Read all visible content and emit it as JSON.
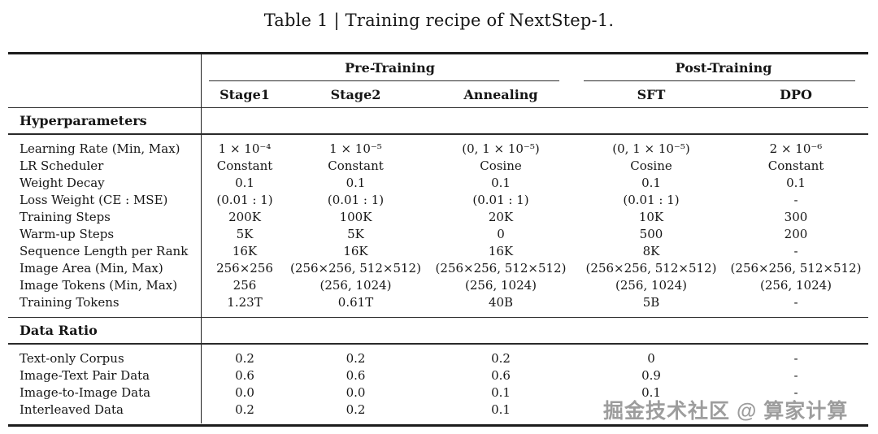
{
  "caption": "Table 1 | Training recipe of NextStep-1.",
  "table": {
    "col_groups": [
      {
        "label": "Pre-Training"
      },
      {
        "label": "Post-Training"
      }
    ],
    "columns": [
      "Stage1",
      "Stage2",
      "Annealing",
      "SFT",
      "DPO"
    ],
    "sections": [
      {
        "title": "Hyperparameters",
        "rows": [
          {
            "label": "Learning Rate (Min, Max)",
            "values": [
              "1 × 10⁻⁴",
              "1 × 10⁻⁵",
              "(0, 1 × 10⁻⁵)",
              "(0, 1 × 10⁻⁵)",
              "2 × 10⁻⁶"
            ]
          },
          {
            "label": "LR Scheduler",
            "values": [
              "Constant",
              "Constant",
              "Cosine",
              "Cosine",
              "Constant"
            ]
          },
          {
            "label": "Weight Decay",
            "values": [
              "0.1",
              "0.1",
              "0.1",
              "0.1",
              "0.1"
            ]
          },
          {
            "label": "Loss Weight (CE : MSE)",
            "values": [
              "(0.01 : 1)",
              "(0.01 : 1)",
              "(0.01 : 1)",
              "(0.01 : 1)",
              "-"
            ]
          },
          {
            "label": "Training Steps",
            "values": [
              "200K",
              "100K",
              "20K",
              "10K",
              "300"
            ]
          },
          {
            "label": "Warm-up Steps",
            "values": [
              "5K",
              "5K",
              "0",
              "500",
              "200"
            ]
          },
          {
            "label": "Sequence Length per Rank",
            "values": [
              "16K",
              "16K",
              "16K",
              "8K",
              "-"
            ]
          },
          {
            "label": "Image Area (Min, Max)",
            "values": [
              "256×256",
              "(256×256, 512×512)",
              "(256×256, 512×512)",
              "(256×256, 512×512)",
              "(256×256, 512×512)"
            ]
          },
          {
            "label": "Image Tokens (Min, Max)",
            "values": [
              "256",
              "(256, 1024)",
              "(256, 1024)",
              "(256, 1024)",
              "(256, 1024)"
            ]
          },
          {
            "label": "Training Tokens",
            "values": [
              "1.23T",
              "0.61T",
              "40B",
              "5B",
              "-"
            ]
          }
        ]
      },
      {
        "title": "Data Ratio",
        "rows": [
          {
            "label": "Text-only Corpus",
            "values": [
              "0.2",
              "0.2",
              "0.2",
              "0",
              "-"
            ]
          },
          {
            "label": "Image-Text Pair Data",
            "values": [
              "0.6",
              "0.6",
              "0.6",
              "0.9",
              "-"
            ]
          },
          {
            "label": "Image-to-Image Data",
            "values": [
              "0.0",
              "0.0",
              "0.1",
              "0.1",
              "-"
            ]
          },
          {
            "label": "Interleaved Data",
            "values": [
              "0.2",
              "0.2",
              "0.1",
              "",
              ""
            ]
          }
        ]
      }
    ]
  },
  "watermark": "掘金技术社区 @ 算家计算"
}
